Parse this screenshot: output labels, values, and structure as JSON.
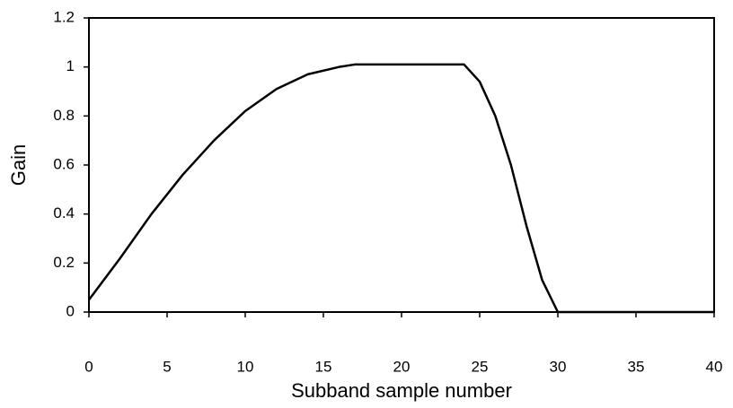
{
  "chart_data": {
    "type": "line",
    "x_label": "Subband sample number",
    "y_label": "Gain",
    "x": [
      0,
      2,
      4,
      6,
      8,
      10,
      12,
      14,
      16,
      17,
      24,
      25,
      26,
      27,
      28,
      29,
      30,
      40
    ],
    "values": [
      0.05,
      0.22,
      0.4,
      0.56,
      0.7,
      0.82,
      0.91,
      0.97,
      1.0,
      1.01,
      1.01,
      0.94,
      0.8,
      0.6,
      0.35,
      0.13,
      0,
      0
    ],
    "color": "#000000",
    "xlim": [
      0,
      40
    ],
    "xticks": [
      0,
      5,
      10,
      15,
      20,
      25,
      30,
      35,
      40
    ],
    "ylim": [
      0,
      1.2
    ],
    "yticks": [
      0,
      0.2,
      0.4,
      0.6,
      0.8,
      1,
      1.2
    ],
    "grid": false
  }
}
